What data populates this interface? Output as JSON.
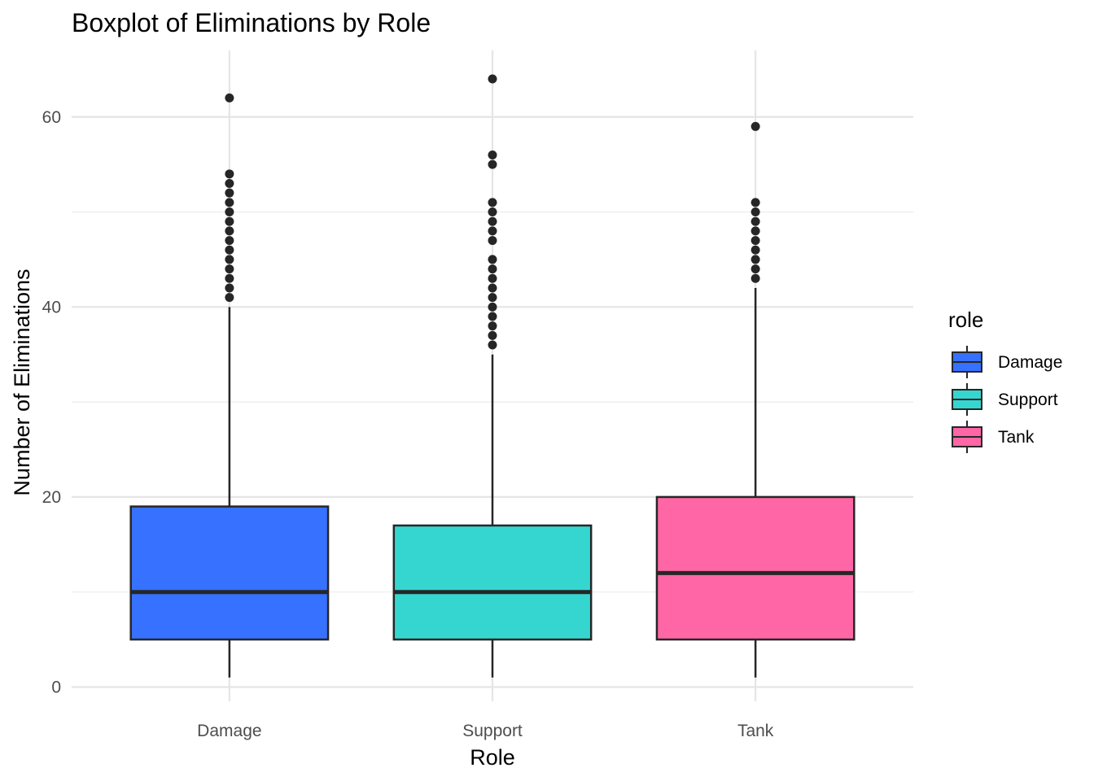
{
  "chart_data": {
    "type": "boxplot",
    "title": "Boxplot of Eliminations by Role",
    "xlabel": "Role",
    "ylabel": "Number of Eliminations",
    "ylim": [
      -1.5,
      67
    ],
    "y_ticks": [
      0,
      20,
      40,
      60
    ],
    "grid": true,
    "legend": {
      "title": "role",
      "position": "right"
    },
    "categories": [
      "Damage",
      "Support",
      "Tank"
    ],
    "series": [
      {
        "name": "Damage",
        "color": "#3771ff",
        "min": 1,
        "q1": 5,
        "median": 10,
        "q3": 19,
        "whisker_high": 40,
        "outliers": [
          41,
          42,
          43,
          44,
          45,
          46,
          47,
          48,
          49,
          50,
          51,
          52,
          53,
          54,
          62
        ]
      },
      {
        "name": "Support",
        "color": "#36d6d0",
        "min": 1,
        "q1": 5,
        "median": 10,
        "q3": 17,
        "whisker_high": 35,
        "outliers": [
          36,
          37,
          38,
          39,
          40,
          41,
          42,
          43,
          44,
          45,
          47,
          48,
          49,
          50,
          51,
          55,
          56,
          64
        ]
      },
      {
        "name": "Tank",
        "color": "#ff66a6",
        "min": 1,
        "q1": 5,
        "median": 12,
        "q3": 20,
        "whisker_high": 42,
        "outliers": [
          43,
          44,
          45,
          46,
          47,
          48,
          49,
          50,
          51,
          59
        ]
      }
    ]
  }
}
